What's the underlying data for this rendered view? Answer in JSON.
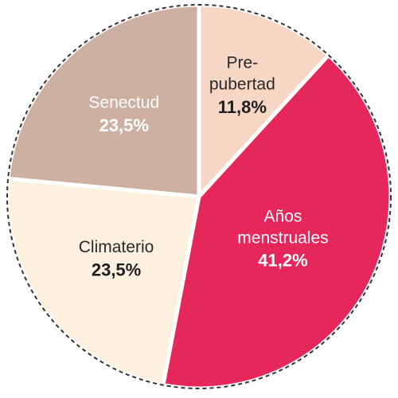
{
  "chart_data": {
    "type": "pie",
    "title": "",
    "slices": [
      {
        "label_lines": [
          "Pre-",
          "pubertad"
        ],
        "value": 11.8,
        "value_label": "11,8%",
        "color": "#F6D7C6",
        "text_color": "#2a2a2a",
        "value_color": "#1e1e1e"
      },
      {
        "label_lines": [
          "Años",
          "menstruales"
        ],
        "value": 41.2,
        "value_label": "41,2%",
        "color": "#E5275B",
        "text_color": "#ffffff",
        "value_color": "#ffffff"
      },
      {
        "label_lines": [
          "Climaterio"
        ],
        "value": 23.5,
        "value_label": "23,5%",
        "color": "#FEF0DF",
        "text_color": "#2a2a2a",
        "value_color": "#1e1e1e"
      },
      {
        "label_lines": [
          "Senectud"
        ],
        "value": 23.5,
        "value_label": "23,5%",
        "color": "#CDB0A1",
        "text_color": "#ffffff",
        "value_color": "#ffffff"
      }
    ],
    "start_angle_deg": 0,
    "direction": "clockwise",
    "separator_color": "#ffffff",
    "outline": "dashed",
    "outline_color": "#333333",
    "legend": "none"
  }
}
